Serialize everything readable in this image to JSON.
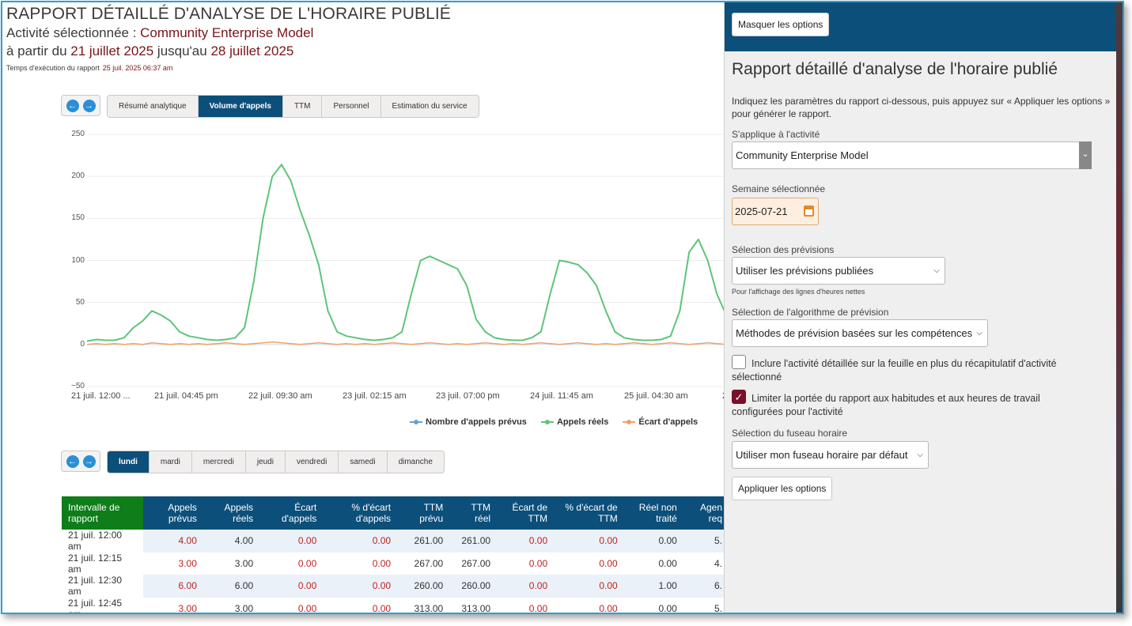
{
  "header": {
    "title": "RAPPORT DÉTAILLÉ D'ANALYSE DE L'HORAIRE PUBLIÉ",
    "activity_prefix": "Activité sélectionnée : ",
    "activity_name": "Community Enterprise Model",
    "range_prefix": "à partir du ",
    "range_start": "21 juillet 2025",
    "range_mid": " jusqu'au ",
    "range_end": "28 juillet 2025",
    "run_label": "Temps d'exécution du rapport",
    "run_value": "25 juil. 2025 06:37 am"
  },
  "chart_tabs": [
    "Résumé analytique",
    "Volume d'appels",
    "TTM",
    "Personnel",
    "Estimation du service"
  ],
  "chart_tabs_active": 1,
  "day_tabs": [
    "lundi",
    "mardi",
    "mercredi",
    "jeudi",
    "vendredi",
    "samedi",
    "dimanche"
  ],
  "day_tabs_active": 0,
  "nav_icons": {
    "prev": "arrow-left-icon",
    "next": "arrow-right-icon"
  },
  "chart_data": {
    "type": "line",
    "title": "",
    "xlabel": "",
    "ylabel": "",
    "ylim": [
      -50,
      250
    ],
    "yticks": [
      "250",
      "200",
      "150",
      "100",
      "50",
      "0",
      "−50"
    ],
    "x_tick_labels": [
      "21 juil. 12:00 ...",
      "21 juil. 04:45 pm",
      "22 juil. 09:30 am",
      "23 juil. 02:15 am",
      "23 juil. 07:00 pm",
      "24 juil. 11:45 am",
      "25 juil. 04:30 am",
      "2"
    ],
    "grid": true,
    "legend_position": "bottom",
    "x_start_hour": 0,
    "x_step_hours": 2,
    "x_end_hour": 108,
    "series": [
      {
        "name": "Nombre d'appels prévus",
        "color": "#6aa0d0",
        "values": []
      },
      {
        "name": "Appels réels",
        "color": "#5ec47a",
        "values": [
          4,
          6,
          5,
          5,
          8,
          20,
          28,
          40,
          35,
          28,
          15,
          10,
          8,
          6,
          5,
          6,
          8,
          20,
          75,
          150,
          200,
          214,
          195,
          160,
          130,
          95,
          40,
          15,
          10,
          8,
          6,
          5,
          6,
          8,
          15,
          60,
          100,
          105,
          100,
          95,
          90,
          70,
          30,
          15,
          8,
          6,
          5,
          5,
          8,
          15,
          60,
          100,
          98,
          95,
          85,
          70,
          40,
          15,
          8,
          6,
          5,
          5,
          6,
          10,
          40,
          110,
          125,
          100,
          60,
          35
        ]
      },
      {
        "name": "Écart d'appels",
        "color": "#f0a06a",
        "values": [
          0,
          1,
          0,
          1,
          0,
          1,
          0,
          2,
          1,
          0,
          1,
          0,
          1,
          0,
          1,
          2,
          1,
          0,
          1,
          2,
          3,
          2,
          1,
          0,
          1,
          2,
          1,
          0,
          1,
          0,
          1,
          0,
          1,
          2,
          1,
          0,
          1,
          2,
          1,
          0,
          1,
          0,
          1,
          2,
          1,
          0,
          1,
          0,
          1,
          2,
          1,
          0,
          1,
          2,
          1,
          0,
          1,
          0,
          1,
          2,
          1,
          0,
          1,
          2,
          1,
          0,
          1,
          2,
          1,
          0
        ]
      }
    ]
  },
  "table": {
    "columns": [
      "Intervalle de rapport",
      "Appels prévus",
      "Appels réels",
      "Écart d'appels",
      "% d'écart d'appels",
      "TTM prévu",
      "TTM réel",
      "Écart de TTM",
      "% d'écart de TTM",
      "Réel non traité",
      "Agen req"
    ],
    "rows": [
      [
        "21 juil. 12:00 am",
        "4.00",
        "4.00",
        "0.00",
        "0.00",
        "261.00",
        "261.00",
        "0.00",
        "0.00",
        "0.00",
        "5."
      ],
      [
        "21 juil. 12:15 am",
        "3.00",
        "3.00",
        "0.00",
        "0.00",
        "267.00",
        "267.00",
        "0.00",
        "0.00",
        "0.00",
        "4."
      ],
      [
        "21 juil. 12:30 am",
        "6.00",
        "6.00",
        "0.00",
        "0.00",
        "260.00",
        "260.00",
        "0.00",
        "0.00",
        "1.00",
        "6."
      ],
      [
        "21 juil. 12:45 am",
        "3.00",
        "3.00",
        "0.00",
        "0.00",
        "313.00",
        "313.00",
        "0.00",
        "0.00",
        "0.00",
        "5."
      ]
    ]
  },
  "panel": {
    "hide_button": "Masquer les options",
    "title": "Rapport détaillé d'analyse de l'horaire publié",
    "description": "Indiquez les paramètres du rapport ci-dessous, puis appuyez sur « Appliquer les options » pour générer le rapport.",
    "activity_label": "S'applique à l'activité",
    "activity_value": "Community Enterprise Model",
    "week_label": "Semaine sélectionnée",
    "week_value": "2025-07-21",
    "forecast_label": "Sélection des prévisions",
    "forecast_value": "Utiliser les prévisions publiées",
    "forecast_note": "Pour l'affichage des lignes d'heures nettes",
    "algo_label": "Sélection de l'algorithme de prévision",
    "algo_value": "Méthodes de prévision basées sur les compétences",
    "include_detail_label": "Inclure l'activité détaillée sur la feuille en plus du récapitulatif d'activité sélectionné",
    "include_detail_checked": false,
    "limit_label": "Limiter la portée du rapport aux habitudes et aux heures de travail configurées pour l'activité",
    "limit_checked": true,
    "tz_label": "Sélection du fuseau horaire",
    "tz_value": "Utiliser mon fuseau horaire par défaut",
    "apply_button": "Appliquer les options"
  }
}
